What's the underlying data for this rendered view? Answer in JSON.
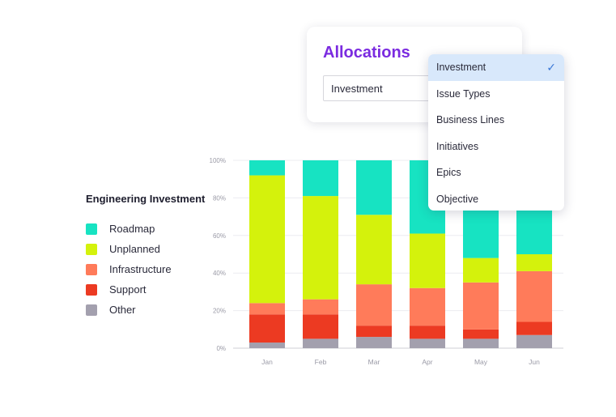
{
  "legend": {
    "title": "Engineering Investment",
    "items": [
      {
        "label": "Roadmap",
        "color": "#17e3c2"
      },
      {
        "label": "Unplanned",
        "color": "#d4f20c"
      },
      {
        "label": "Infrastructure",
        "color": "#ff7b5a"
      },
      {
        "label": "Support",
        "color": "#ec3a22"
      },
      {
        "label": "Other",
        "color": "#a3a0ae"
      }
    ]
  },
  "allocations": {
    "title": "Allocations",
    "selected": "Investment",
    "options": [
      {
        "label": "Investment",
        "selected": true,
        "icon": "check-icon"
      },
      {
        "label": "Issue Types",
        "selected": false
      },
      {
        "label": "Business Lines",
        "selected": false
      },
      {
        "label": "Initiatives",
        "selected": false
      },
      {
        "label": "Epics",
        "selected": false
      },
      {
        "label": "Objective",
        "selected": false
      }
    ]
  },
  "chart_data": {
    "type": "bar",
    "stacked": true,
    "categories": [
      "Jan",
      "Feb",
      "Mar",
      "Apr",
      "May",
      "Jun"
    ],
    "yticks": [
      "0%",
      "20%",
      "40%",
      "60%",
      "80%",
      "100%"
    ],
    "ylim": [
      0,
      100
    ],
    "grid": true,
    "series": [
      {
        "name": "Other",
        "color": "#a3a0ae",
        "values": [
          3,
          5,
          6,
          5,
          5,
          7
        ]
      },
      {
        "name": "Support",
        "color": "#ec3a22",
        "values": [
          15,
          13,
          6,
          7,
          5,
          7
        ]
      },
      {
        "name": "Infrastructure",
        "color": "#ff7b5a",
        "values": [
          6,
          8,
          22,
          20,
          25,
          27
        ]
      },
      {
        "name": "Unplanned",
        "color": "#d4f20c",
        "values": [
          68,
          55,
          37,
          29,
          13,
          9
        ]
      },
      {
        "name": "Roadmap",
        "color": "#17e3c2",
        "values": [
          8,
          19,
          29,
          39,
          52,
          50
        ]
      }
    ]
  }
}
